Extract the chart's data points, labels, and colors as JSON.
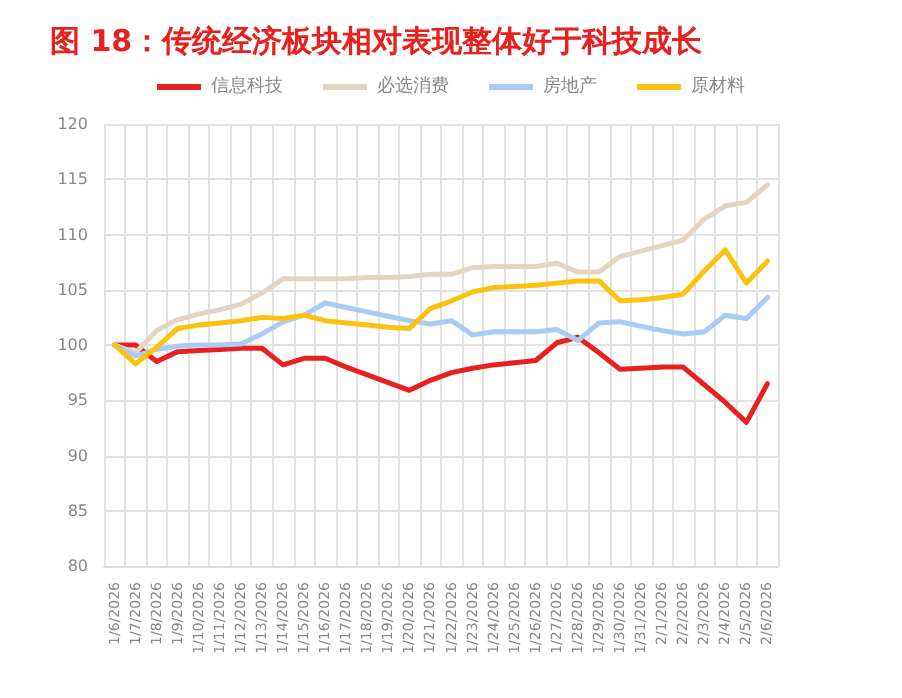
{
  "chart_data": {
    "type": "line",
    "title": "图 18：传统经济板块相对表现整体好于科技成长",
    "categories": [
      "1/6/2026",
      "1/7/2026",
      "1/8/2026",
      "1/9/2026",
      "1/10/2026",
      "1/11/2026",
      "1/12/2026",
      "1/13/2026",
      "1/14/2026",
      "1/15/2026",
      "1/16/2026",
      "1/17/2026",
      "1/18/2026",
      "1/19/2026",
      "1/20/2026",
      "1/21/2026",
      "1/22/2026",
      "1/23/2026",
      "1/24/2026",
      "1/25/2026",
      "1/26/2026",
      "1/27/2026",
      "1/28/2026",
      "1/29/2026",
      "1/30/2026",
      "1/31/2026",
      "2/1/2026",
      "2/2/2026",
      "2/3/2026",
      "2/4/2026",
      "2/5/2026",
      "2/6/2026"
    ],
    "series": [
      {
        "name": "信息科技",
        "color": "#e8201f",
        "values": [
          100,
          100,
          98.5,
          99.4,
          99.5,
          99.6,
          99.7,
          99.7,
          98.2,
          98.8,
          98.8,
          98.0,
          97.3,
          96.6,
          95.9,
          96.8,
          97.5,
          97.9,
          98.2,
          98.4,
          98.6,
          100.2,
          100.7,
          99.3,
          97.8,
          97.9,
          98.0,
          98.0,
          96.4,
          94.8,
          93.0,
          96.5
        ]
      },
      {
        "name": "必选消费",
        "color": "#e2d6c3",
        "values": [
          100,
          99.3,
          101.3,
          102.3,
          102.8,
          103.2,
          103.7,
          104.7,
          106.0,
          106.0,
          106.0,
          106.0,
          106.1,
          106.1,
          106.2,
          106.4,
          106.4,
          107.0,
          107.1,
          107.1,
          107.1,
          107.4,
          106.6,
          106.6,
          108.0,
          108.5,
          109.0,
          109.5,
          111.4,
          112.6,
          112.9,
          114.5
        ]
      },
      {
        "name": "房地产",
        "color": "#a9cbf5",
        "values": [
          100,
          99.0,
          99.6,
          99.9,
          100,
          100,
          100.1,
          101.0,
          102.1,
          102.7,
          103.8,
          103.4,
          103.0,
          102.6,
          102.2,
          101.9,
          102.2,
          100.9,
          101.2,
          101.2,
          101.2,
          101.4,
          100.4,
          102.0,
          102.1,
          101.7,
          101.3,
          101.0,
          101.2,
          102.7,
          102.4,
          104.3
        ]
      },
      {
        "name": "原材料",
        "color": "#fbc210",
        "values": [
          100,
          98.3,
          99.8,
          101.5,
          101.8,
          102.0,
          102.2,
          102.5,
          102.4,
          102.7,
          102.2,
          102.0,
          101.8,
          101.6,
          101.5,
          103.3,
          104.0,
          104.8,
          105.2,
          105.3,
          105.4,
          105.6,
          105.8,
          105.8,
          104.0,
          104.1,
          104.3,
          104.6,
          106.7,
          108.6,
          105.6,
          107.6
        ]
      }
    ],
    "ylim": [
      80,
      120
    ],
    "yticks": [
      80,
      85,
      90,
      95,
      100,
      105,
      110,
      115,
      120
    ],
    "grid": true,
    "legend": "top",
    "marker": "none",
    "line_style": "solid"
  }
}
